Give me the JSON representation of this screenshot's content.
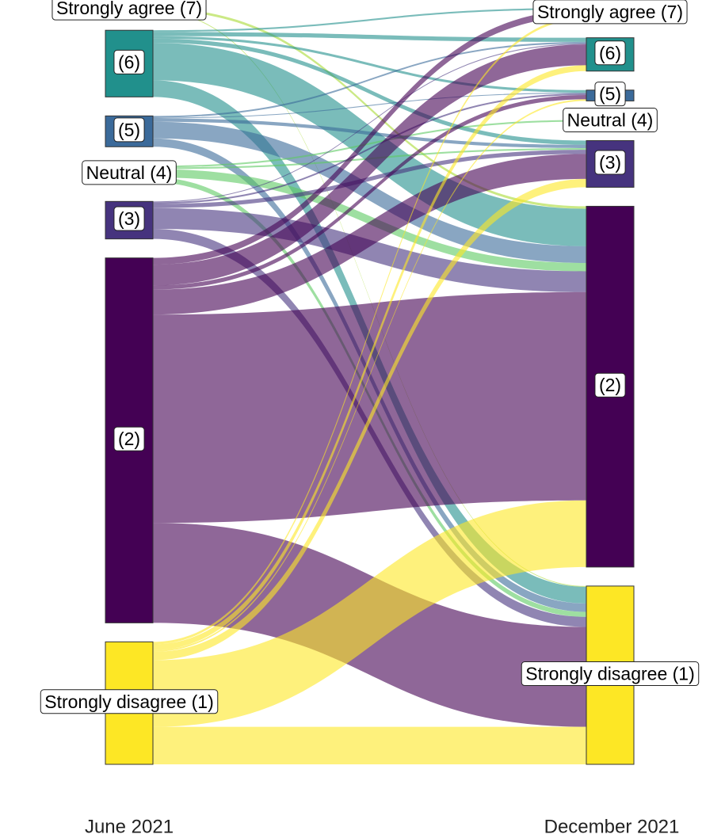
{
  "chart_data": {
    "type": "alluvial",
    "axis_labels": [
      "June 2021",
      "December 2021"
    ],
    "nodes": [
      {
        "label": "Strongly agree (7)",
        "color": "#a8db34"
      },
      {
        "label": "(6)",
        "color": "#21908c"
      },
      {
        "label": "(5)",
        "color": "#3b6a9a"
      },
      {
        "label": "Neutral (4)",
        "color": "#5ec962"
      },
      {
        "label": "(3)",
        "color": "#46337e"
      },
      {
        "label": "(2)",
        "color": "#440154"
      },
      {
        "label": "Strongly disagree (1)",
        "color": "#fde725"
      }
    ],
    "flows": [
      {
        "from": 0,
        "to": 5,
        "value": 3
      },
      {
        "from": 0,
        "to": 6,
        "value": 1
      },
      {
        "from": 1,
        "to": 0,
        "value": 2
      },
      {
        "from": 1,
        "to": 1,
        "value": 5
      },
      {
        "from": 1,
        "to": 2,
        "value": 3
      },
      {
        "from": 1,
        "to": 4,
        "value": 5
      },
      {
        "from": 1,
        "to": 5,
        "value": 45
      },
      {
        "from": 1,
        "to": 6,
        "value": 20
      },
      {
        "from": 2,
        "to": 1,
        "value": 2
      },
      {
        "from": 2,
        "to": 2,
        "value": 1
      },
      {
        "from": 2,
        "to": 4,
        "value": 4
      },
      {
        "from": 2,
        "to": 5,
        "value": 20
      },
      {
        "from": 2,
        "to": 6,
        "value": 10
      },
      {
        "from": 3,
        "to": 3,
        "value": 2
      },
      {
        "from": 3,
        "to": 4,
        "value": 2
      },
      {
        "from": 3,
        "to": 5,
        "value": 10
      },
      {
        "from": 3,
        "to": 6,
        "value": 6
      },
      {
        "from": 4,
        "to": 1,
        "value": 1
      },
      {
        "from": 4,
        "to": 2,
        "value": 2
      },
      {
        "from": 4,
        "to": 4,
        "value": 5
      },
      {
        "from": 4,
        "to": 5,
        "value": 25
      },
      {
        "from": 4,
        "to": 6,
        "value": 12
      },
      {
        "from": 5,
        "to": 0,
        "value": 8
      },
      {
        "from": 5,
        "to": 1,
        "value": 25
      },
      {
        "from": 5,
        "to": 2,
        "value": 5
      },
      {
        "from": 5,
        "to": 4,
        "value": 30
      },
      {
        "from": 5,
        "to": 5,
        "value": 250
      },
      {
        "from": 5,
        "to": 6,
        "value": 120
      },
      {
        "from": 6,
        "to": 0,
        "value": 3
      },
      {
        "from": 6,
        "to": 1,
        "value": 7
      },
      {
        "from": 6,
        "to": 2,
        "value": 2
      },
      {
        "from": 6,
        "to": 4,
        "value": 10
      },
      {
        "from": 6,
        "to": 5,
        "value": 80
      },
      {
        "from": 6,
        "to": 6,
        "value": 45
      }
    ]
  }
}
